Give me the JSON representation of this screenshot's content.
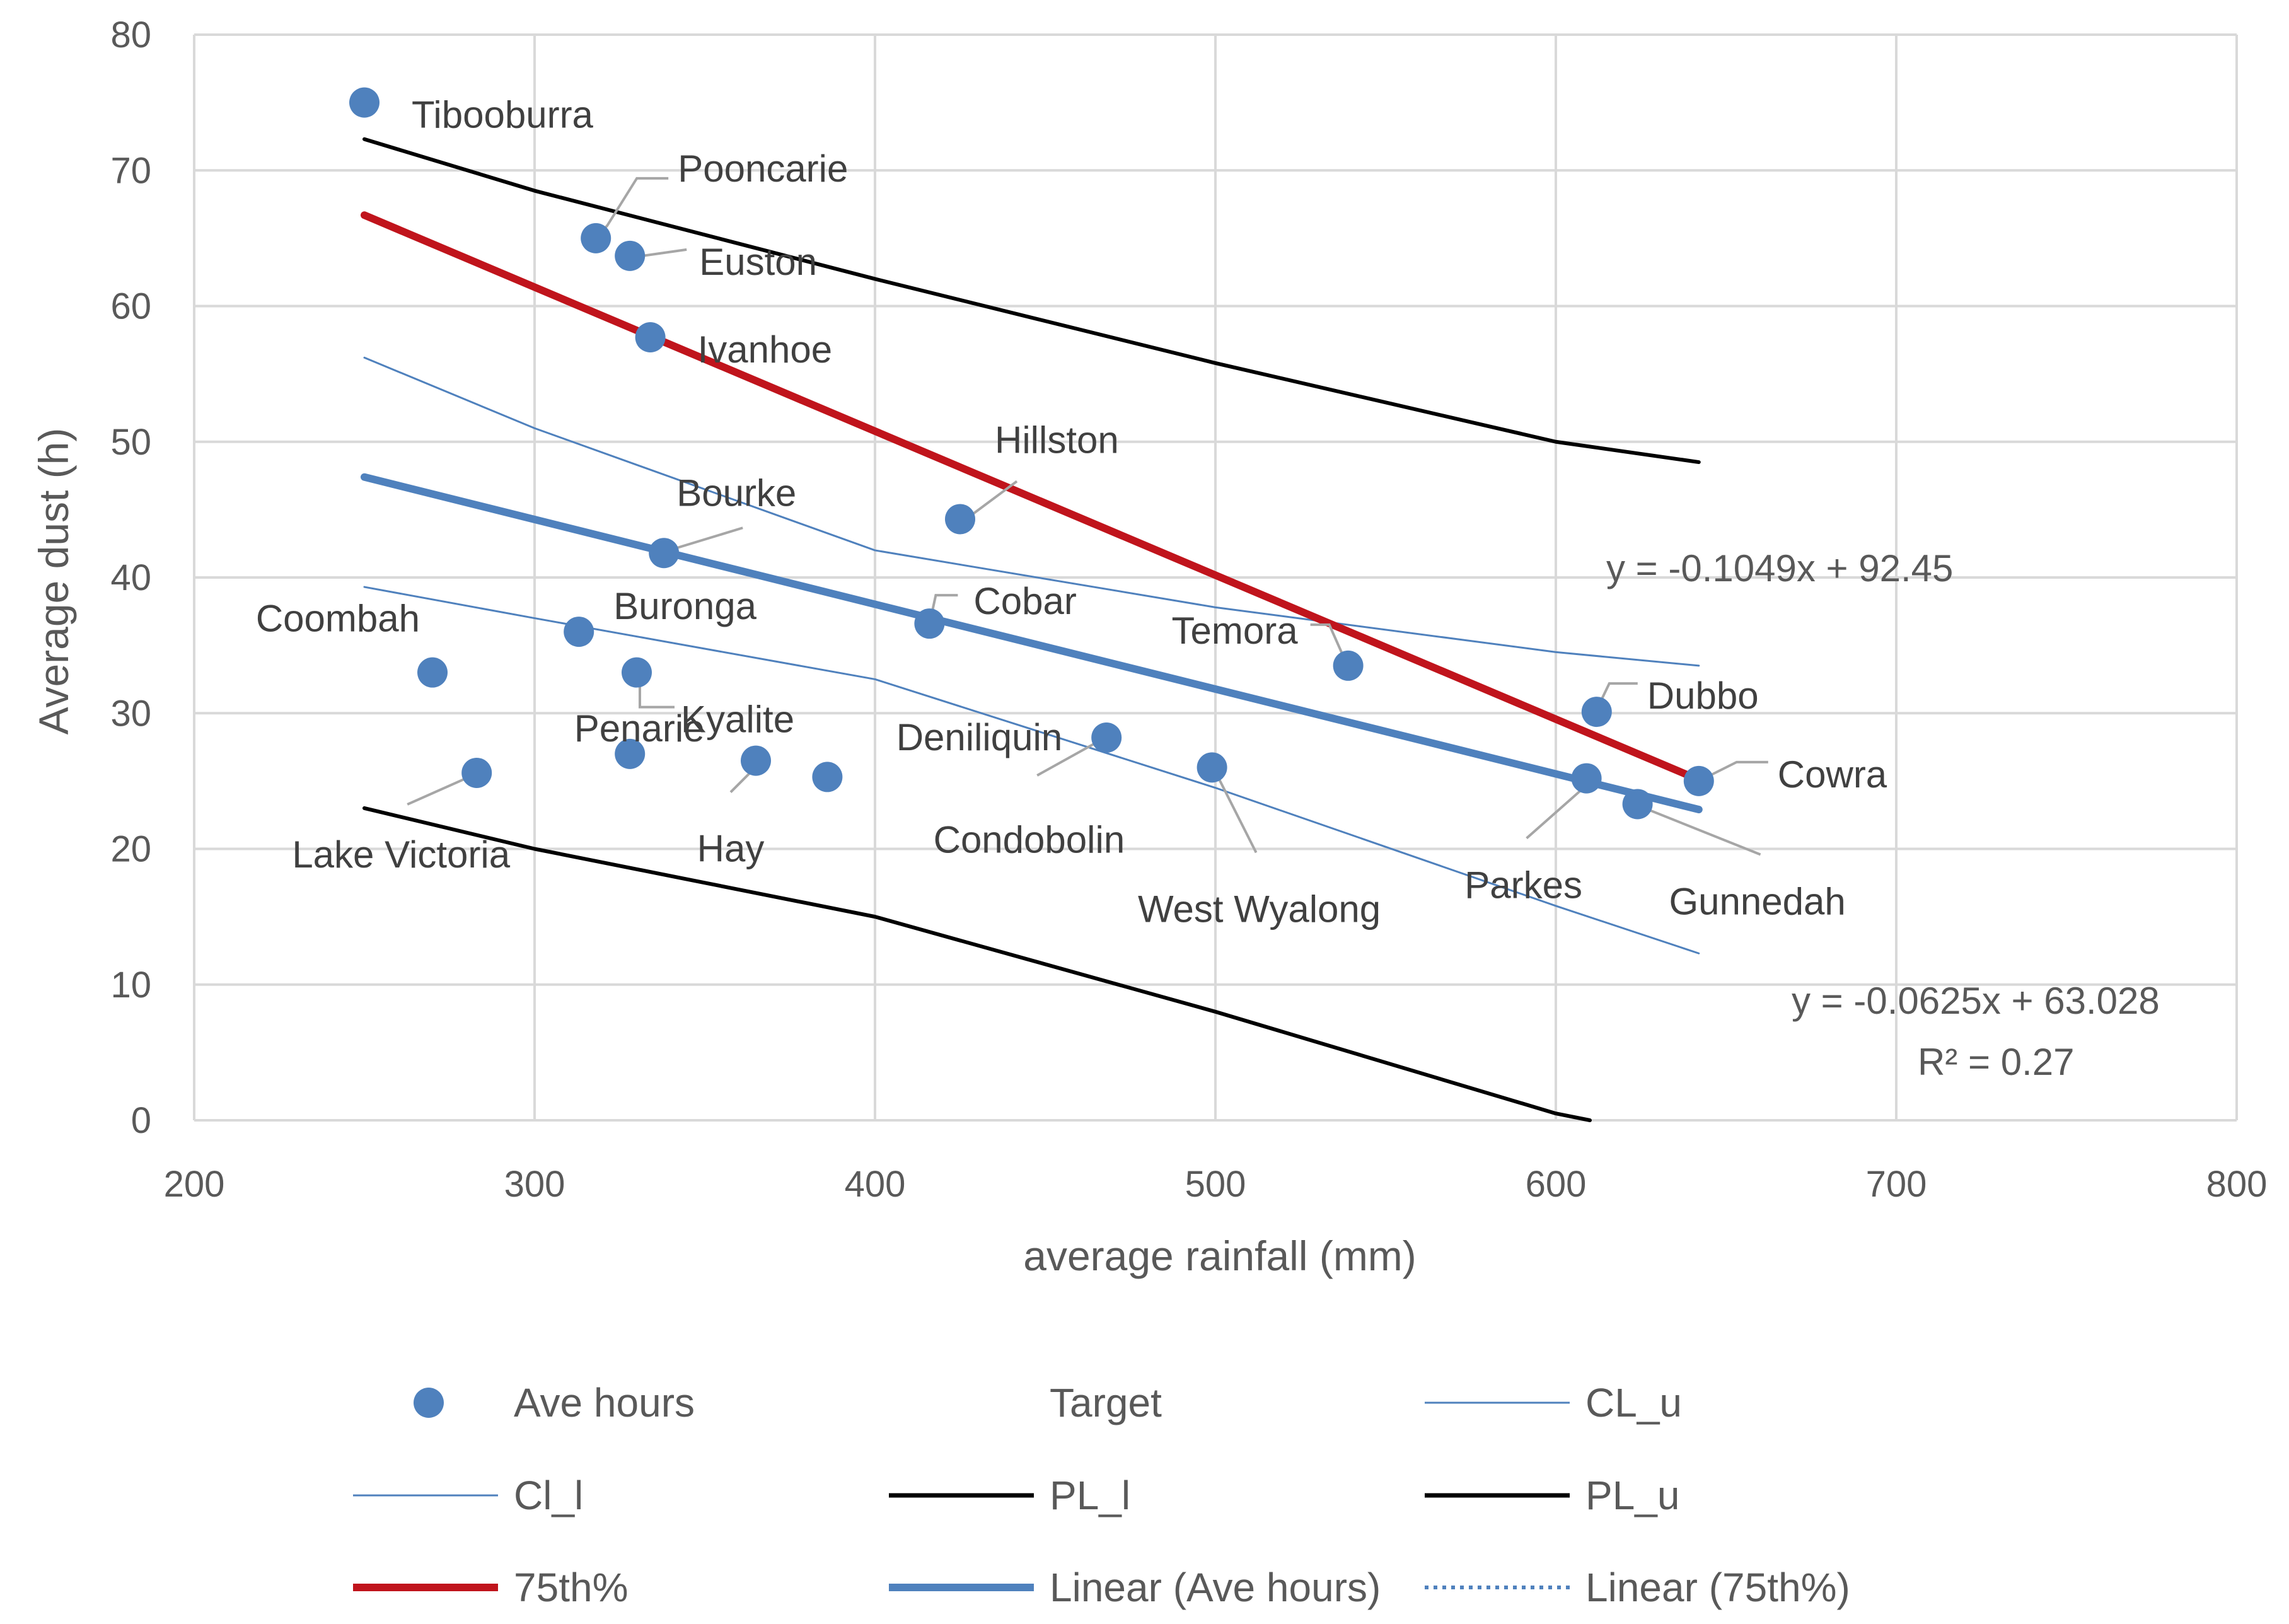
{
  "chart_data": {
    "type": "scatter",
    "xlabel": "average rainfall (mm)",
    "ylabel": "Average dust (h)",
    "xlim": [
      200,
      800
    ],
    "ylim": [
      0,
      80
    ],
    "x_ticks": [
      200,
      300,
      400,
      500,
      600,
      700,
      800
    ],
    "y_ticks": [
      0,
      10,
      20,
      30,
      40,
      50,
      60,
      70,
      80
    ],
    "grid": true,
    "legend_position": "bottom",
    "colors": {
      "points": "#4f81bd",
      "linear_fit": "#4f81bd",
      "ci": "#4f81bd",
      "pl": "#000000",
      "p75": "#c0141c",
      "grid": "#d9d9d9",
      "label_leader": "#a6a6a6"
    },
    "points": [
      {
        "label": "Tibooburra",
        "x": 250,
        "y": 75
      },
      {
        "label": "Pooncarie",
        "x": 318,
        "y": 65
      },
      {
        "label": "Euston",
        "x": 328,
        "y": 63.7
      },
      {
        "label": "Ivanhoe",
        "x": 334,
        "y": 57.7
      },
      {
        "label": "Hillston",
        "x": 425,
        "y": 44.3
      },
      {
        "label": "Bourke",
        "x": 338,
        "y": 41.8
      },
      {
        "label": "Cobar",
        "x": 416,
        "y": 36.6
      },
      {
        "label": "Buronga",
        "x": 313,
        "y": 36
      },
      {
        "label": "Temora",
        "x": 539,
        "y": 33.5
      },
      {
        "label": "Coombah",
        "x": 270,
        "y": 33
      },
      {
        "label": "Kyalite",
        "x": 330,
        "y": 33
      },
      {
        "label": "Dubbo",
        "x": 612,
        "y": 30.1
      },
      {
        "label": "Deniliquin",
        "x": 468,
        "y": 28.2
      },
      {
        "label": "Penarie",
        "x": 328,
        "y": 27
      },
      {
        "label": "Hay",
        "x": 365,
        "y": 26.5
      },
      {
        "label": "West Wyalong",
        "x": 499,
        "y": 26
      },
      {
        "label": "Lake Victoria",
        "x": 283,
        "y": 25.6
      },
      {
        "label": "Condobolin",
        "x": 386,
        "y": 25.3
      },
      {
        "label": "Parkes",
        "x": 609,
        "y": 25.2
      },
      {
        "label": "Cowra",
        "x": 642,
        "y": 25
      },
      {
        "label": "Gunnedah",
        "x": 624,
        "y": 23.3
      }
    ],
    "series": [
      {
        "name": "CL_u",
        "x": [
          250,
          300,
          400,
          500,
          600,
          642
        ],
        "y": [
          56.2,
          51.0,
          42.0,
          37.8,
          34.5,
          33.5
        ]
      },
      {
        "name": "Cl_l",
        "x": [
          250,
          300,
          400,
          500,
          600,
          642
        ],
        "y": [
          39.3,
          37.0,
          32.5,
          24.5,
          15.8,
          12.3
        ]
      },
      {
        "name": "PL_l",
        "x": [
          250,
          300,
          400,
          500,
          600,
          610
        ],
        "y": [
          23.0,
          20.0,
          15.0,
          8.0,
          0.5,
          0
        ]
      },
      {
        "name": "PL_u",
        "x": [
          250,
          300,
          400,
          500,
          600,
          642
        ],
        "y": [
          72.3,
          68.5,
          62.0,
          55.8,
          50.0,
          48.5
        ]
      },
      {
        "name": "75th%",
        "x": [
          250,
          642
        ],
        "y": [
          66.7,
          25.1
        ]
      },
      {
        "name": "Linear (Ave hours)",
        "x": [
          250,
          642
        ],
        "y": [
          47.4,
          22.9
        ]
      }
    ],
    "annotations": [
      {
        "text": "y = -0.1049x + 92.45"
      },
      {
        "text": "y = -0.0625x + 63.028"
      },
      {
        "text": "R² = 0.27"
      }
    ],
    "legend": [
      {
        "name": "Ave hours",
        "style": "marker"
      },
      {
        "name": "Target",
        "style": "none"
      },
      {
        "name": "CL_u",
        "style": "thin-blue"
      },
      {
        "name": "Cl_l",
        "style": "thin-blue"
      },
      {
        "name": "PL_l",
        "style": "black"
      },
      {
        "name": "PL_u",
        "style": "black"
      },
      {
        "name": "75th%",
        "style": "thick-red"
      },
      {
        "name": "Linear (Ave hours)",
        "style": "thick-blue"
      },
      {
        "name": "Linear (75th%)",
        "style": "dotted"
      }
    ]
  }
}
